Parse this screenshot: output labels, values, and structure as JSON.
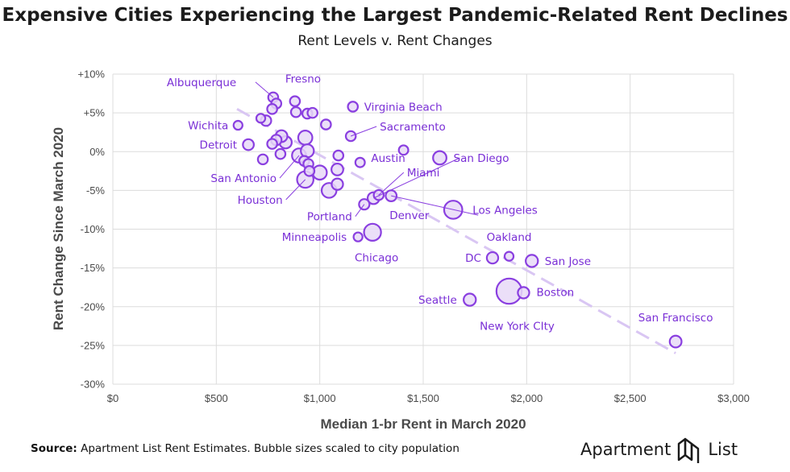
{
  "header": {
    "title": "Expensive Cities Experiencing the Largest Pandemic-Related Rent Declines",
    "subtitle": "Rent Levels v. Rent Changes"
  },
  "footer": {
    "source_label": "Source:",
    "source_text": "Apartment List Rent Estimates. Bubble sizes scaled to city population",
    "logo_word1": "Apartment",
    "logo_word2": "List"
  },
  "colors": {
    "bubble_fill": "#e7d9f7",
    "bubble_stroke": "#8a3fe0",
    "label": "#7a2fd6",
    "trend": "#d9c6f3",
    "grid": "#dcdcdc",
    "axis_text": "#4a4a4a"
  },
  "chart_data": {
    "type": "scatter",
    "xlabel": "Median 1-br Rent in March 2020",
    "ylabel": "Rent Change Since March 2020",
    "xlim": [
      0,
      3000
    ],
    "ylim": [
      -30,
      10
    ],
    "x_ticks": [
      0,
      500,
      1000,
      1500,
      2000,
      2500,
      3000
    ],
    "x_tick_labels": [
      "$0",
      "$500",
      "$1,000",
      "$1,500",
      "$2,000",
      "$2,500",
      "$3,000"
    ],
    "y_ticks": [
      10,
      5,
      0,
      -5,
      -10,
      -15,
      -20,
      -25,
      -30
    ],
    "y_tick_labels": [
      "+10%",
      "+5%",
      "0%",
      "-5%",
      "-10%",
      "-15%",
      "-20%",
      "-25%",
      "-30%"
    ],
    "grid": true,
    "trendline": {
      "from": [
        600,
        5.5
      ],
      "to": [
        2720,
        -26
      ]
    },
    "points": [
      {
        "label": "Albuquerque",
        "x": 775,
        "y": 7.0,
        "size": 1
      },
      {
        "label": "",
        "x": 790,
        "y": 6.2,
        "size": 1
      },
      {
        "label": "",
        "x": 770,
        "y": 5.5,
        "size": 1
      },
      {
        "label": "Fresno",
        "x": 880,
        "y": 6.5,
        "size": 1
      },
      {
        "label": "",
        "x": 885,
        "y": 5.1,
        "size": 1
      },
      {
        "label": "",
        "x": 940,
        "y": 4.9,
        "size": 1
      },
      {
        "label": "",
        "x": 965,
        "y": 5.0,
        "size": 1
      },
      {
        "label": "Virginia Beach",
        "x": 1160,
        "y": 5.8,
        "size": 1
      },
      {
        "label": "Wichita",
        "x": 605,
        "y": 3.4,
        "size": 0.8
      },
      {
        "label": "",
        "x": 715,
        "y": 4.3,
        "size": 0.8
      },
      {
        "label": "",
        "x": 740,
        "y": 4.0,
        "size": 1.1
      },
      {
        "label": "",
        "x": 1030,
        "y": 3.5,
        "size": 1
      },
      {
        "label": "Sacramento",
        "x": 1150,
        "y": 2.0,
        "size": 1
      },
      {
        "label": "Detroit",
        "x": 655,
        "y": 0.9,
        "size": 1.2
      },
      {
        "label": "",
        "x": 770,
        "y": 1.0,
        "size": 1
      },
      {
        "label": "",
        "x": 790,
        "y": 1.5,
        "size": 1.1
      },
      {
        "label": "",
        "x": 815,
        "y": 2.0,
        "size": 1.4
      },
      {
        "label": "",
        "x": 835,
        "y": 1.2,
        "size": 1.5
      },
      {
        "label": "",
        "x": 930,
        "y": 1.8,
        "size": 2.0
      },
      {
        "label": "",
        "x": 940,
        "y": 0.1,
        "size": 1.7
      },
      {
        "label": "",
        "x": 810,
        "y": -0.3,
        "size": 1
      },
      {
        "label": "",
        "x": 725,
        "y": -1.0,
        "size": 1
      },
      {
        "label": "",
        "x": 1090,
        "y": -0.5,
        "size": 1
      },
      {
        "label": "",
        "x": 1195,
        "y": -1.4,
        "size": 0.9
      },
      {
        "label": "",
        "x": 1405,
        "y": 0.2,
        "size": 0.9
      },
      {
        "label": "San Diego",
        "x": 1580,
        "y": -0.8,
        "size": 1.8
      },
      {
        "label": "San Antonio",
        "x": 900,
        "y": -0.5,
        "size": 2.0
      },
      {
        "label": "",
        "x": 925,
        "y": -1.2,
        "size": 1
      },
      {
        "label": "",
        "x": 945,
        "y": -1.6,
        "size": 1
      },
      {
        "label": "",
        "x": 950,
        "y": -2.5,
        "size": 1
      },
      {
        "label": "",
        "x": 1000,
        "y": -2.7,
        "size": 2.0
      },
      {
        "label": "",
        "x": 1085,
        "y": -2.3,
        "size": 1.4
      },
      {
        "label": "",
        "x": 1085,
        "y": -4.2,
        "size": 1.3
      },
      {
        "label": "Houston",
        "x": 930,
        "y": -3.6,
        "size": 2.7
      },
      {
        "label": "",
        "x": 1045,
        "y": -5.0,
        "size": 2.2
      },
      {
        "label": "Austin",
        "x": 1260,
        "y": -6.0,
        "size": 1.4
      },
      {
        "label": "Miami",
        "x": 1285,
        "y": -5.6,
        "size": 1
      },
      {
        "label": "Portland",
        "x": 1215,
        "y": -6.8,
        "size": 1.1
      },
      {
        "label": "Denver",
        "x": 1345,
        "y": -5.7,
        "size": 1.2
      },
      {
        "label": "Los Angeles",
        "x": 1645,
        "y": -7.5,
        "size": 3.3
      },
      {
        "label": "Minneapolis",
        "x": 1185,
        "y": -11.0,
        "size": 0.8
      },
      {
        "label": "Chicago",
        "x": 1255,
        "y": -10.4,
        "size": 2.9
      },
      {
        "label": "Oakland",
        "x": 1915,
        "y": -13.5,
        "size": 0.8
      },
      {
        "label": "DC",
        "x": 1835,
        "y": -13.7,
        "size": 1.3
      },
      {
        "label": "San Jose",
        "x": 2025,
        "y": -14.1,
        "size": 1.5
      },
      {
        "label": "Boston",
        "x": 1985,
        "y": -18.2,
        "size": 1.3
      },
      {
        "label": "New York City",
        "x": 1915,
        "y": -18.0,
        "size": 6.4
      },
      {
        "label": "Seattle",
        "x": 1725,
        "y": -19.1,
        "size": 1.5
      },
      {
        "label": "San Francisco",
        "x": 2720,
        "y": -24.5,
        "size": 1.4
      }
    ],
    "annotations": [
      {
        "text": "Albuquerque",
        "point": 0
      },
      {
        "text": "Fresno",
        "point": 3
      },
      {
        "text": "Virginia Beach",
        "point": 7
      },
      {
        "text": "Wichita",
        "point": 8
      },
      {
        "text": "Sacramento",
        "point": 12
      },
      {
        "text": "Detroit",
        "point": 13
      },
      {
        "text": "San Diego",
        "point": 25
      },
      {
        "text": "San Antonio",
        "point": 26
      },
      {
        "text": "Houston",
        "point": 33
      },
      {
        "text": "Austin",
        "point": 35
      },
      {
        "text": "Miami",
        "point": 36
      },
      {
        "text": "Portland",
        "point": 37
      },
      {
        "text": "Denver",
        "point": 38
      },
      {
        "text": "Los Angeles",
        "point": 39
      },
      {
        "text": "Minneapolis",
        "point": 40
      },
      {
        "text": "Chicago",
        "point": 41
      },
      {
        "text": "Oakland",
        "point": 42
      },
      {
        "text": "DC",
        "point": 43
      },
      {
        "text": "San Jose",
        "point": 44
      },
      {
        "text": "Boston",
        "point": 45
      },
      {
        "text": "New York CIty",
        "point": 46
      },
      {
        "text": "Seattle",
        "point": 47
      },
      {
        "text": "San Francisco",
        "point": 48
      }
    ]
  }
}
